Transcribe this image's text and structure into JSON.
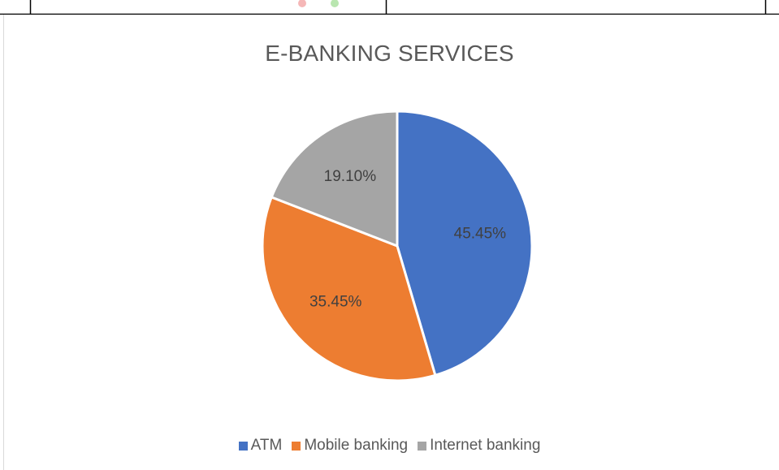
{
  "chart_data": {
    "type": "pie",
    "title": "E-BANKING SERVICES",
    "categories": [
      "ATM",
      "Mobile banking",
      "Internet banking"
    ],
    "values": [
      45.45,
      35.45,
      19.1
    ],
    "labels": [
      "45.45%",
      "35.45%",
      "19.10%"
    ],
    "colors": [
      "#4472c4",
      "#ed7d31",
      "#a5a5a5"
    ],
    "legend_position": "bottom"
  }
}
